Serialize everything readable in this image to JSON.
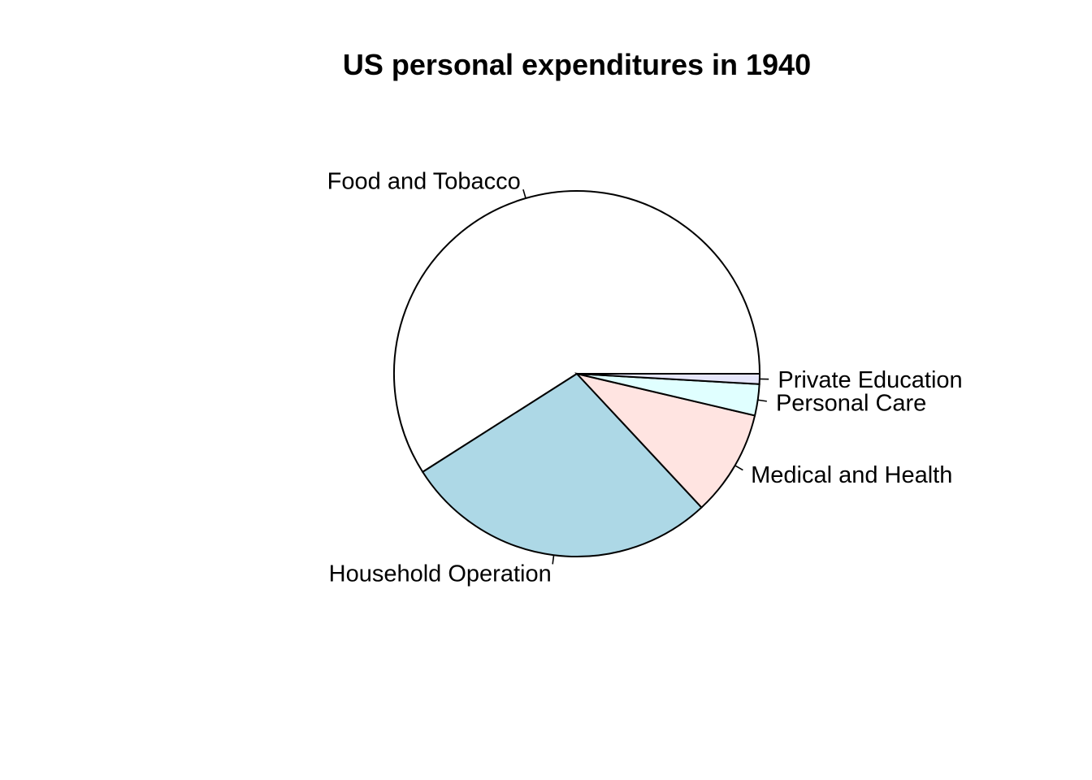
{
  "chart_data": {
    "type": "pie",
    "title": "US personal expenditures in 1940",
    "categories": [
      "Food and Tobacco",
      "Household Operation",
      "Medical and Health",
      "Personal Care",
      "Private Education"
    ],
    "values": [
      22.2,
      10.5,
      3.53,
      1.04,
      0.341
    ],
    "colors": [
      "#FFFFFF",
      "#ADD8E6",
      "#FFE4E1",
      "#E0FFFF",
      "#E6E6FA"
    ],
    "start_angle_deg": 0,
    "direction": "counterclockwise"
  }
}
